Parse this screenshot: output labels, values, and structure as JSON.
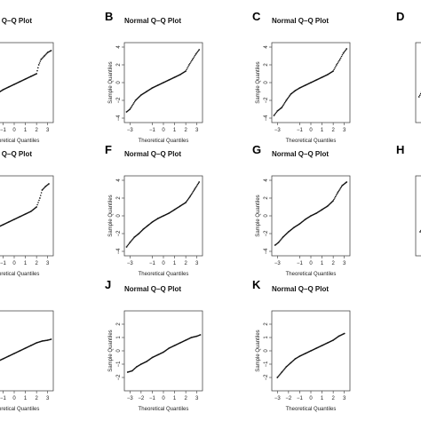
{
  "figure": {
    "panels": [
      {
        "letter": "",
        "title": "Normal Q–Q Plot",
        "xlabel": "Theoretical Quantiles",
        "ylabel": "Sample Quantiles",
        "shape": "A"
      },
      {
        "letter": "B",
        "title": "Normal Q–Q Plot",
        "xlabel": "Theoretical Quantiles",
        "ylabel": "Sample Quantiles",
        "shape": "B"
      },
      {
        "letter": "C",
        "title": "Normal Q–Q Plot",
        "xlabel": "Theoretical Quantiles",
        "ylabel": "Sample Quantiles",
        "shape": "C"
      },
      {
        "letter": "D",
        "title": "N",
        "xlabel": "",
        "ylabel": "",
        "shape": "D"
      },
      {
        "letter": "",
        "title": "Normal Q–Q Plot",
        "xlabel": "Theoretical Quantiles",
        "ylabel": "Sample Quantiles",
        "shape": "E"
      },
      {
        "letter": "F",
        "title": "Normal Q–Q Plot",
        "xlabel": "Theoretical Quantiles",
        "ylabel": "Sample Quantiles",
        "shape": "F"
      },
      {
        "letter": "G",
        "title": "Normal Q–Q Plot",
        "xlabel": "Theoretical Quantiles",
        "ylabel": "Sample Quantiles",
        "shape": "G"
      },
      {
        "letter": "H",
        "title": "N",
        "xlabel": "",
        "ylabel": "",
        "shape": "H"
      },
      {
        "letter": "",
        "title": "",
        "xlabel": "Theoretical Quantiles",
        "ylabel": "",
        "shape": "I"
      },
      {
        "letter": "J",
        "title": "Normal Q–Q Plot",
        "xlabel": "Theoretical Quantiles",
        "ylabel": "Sample Quantiles",
        "shape": "J"
      },
      {
        "letter": "K",
        "title": "Normal Q–Q Plot",
        "xlabel": "Theoretical Quantiles",
        "ylabel": "Sample Quantiles",
        "shape": "K"
      }
    ]
  },
  "chart_data": [
    {
      "panel": "A",
      "type": "scatter",
      "title": "Normal Q–Q Plot",
      "xlabel": "Theoretical Quantiles",
      "ylabel": "Sample Quantiles",
      "xlim": [
        -3.5,
        3.5
      ],
      "ylim": [
        -4.5,
        4.5
      ],
      "x_ticks": [
        -1,
        0,
        1,
        2,
        3
      ],
      "y_ticks": [],
      "x": [
        -3.4,
        -3.0,
        -2.5,
        -2.0,
        -1.5,
        -1.0,
        -0.5,
        0.0,
        0.5,
        1.0,
        1.5,
        2.0,
        2.2,
        2.4,
        2.7,
        3.0,
        3.3
      ],
      "y": [
        -2.8,
        -2.4,
        -2.0,
        -1.6,
        -1.2,
        -0.8,
        -0.5,
        -0.2,
        0.1,
        0.4,
        0.7,
        1.0,
        2.0,
        2.6,
        3.0,
        3.4,
        3.6
      ]
    },
    {
      "panel": "B",
      "type": "scatter",
      "title": "Normal Q–Q Plot",
      "xlabel": "Theoretical Quantiles",
      "ylabel": "Sample Quantiles",
      "xlim": [
        -3.5,
        3.5
      ],
      "ylim": [
        -4.5,
        4.5
      ],
      "x_ticks": [
        -3,
        -1,
        0,
        1,
        2,
        3
      ],
      "y_ticks": [
        -4,
        -2,
        0,
        2,
        4
      ],
      "x": [
        -3.3,
        -3.0,
        -2.5,
        -2.0,
        -1.5,
        -1.0,
        -0.5,
        0.0,
        0.5,
        1.0,
        1.5,
        2.0,
        2.3,
        2.6,
        2.9,
        3.2
      ],
      "y": [
        -3.3,
        -3.0,
        -2.0,
        -1.4,
        -1.0,
        -0.6,
        -0.3,
        0.0,
        0.3,
        0.6,
        0.9,
        1.3,
        2.0,
        2.6,
        3.2,
        3.7
      ]
    },
    {
      "panel": "C",
      "type": "scatter",
      "title": "Normal Q–Q Plot",
      "xlabel": "Theoretical Quantiles",
      "ylabel": "Sample Quantiles",
      "xlim": [
        -3.5,
        3.5
      ],
      "ylim": [
        -4.5,
        4.5
      ],
      "x_ticks": [
        -3,
        -1,
        0,
        1,
        2,
        3
      ],
      "y_ticks": [
        -4,
        -2,
        0,
        2,
        4
      ],
      "x": [
        -3.3,
        -3.0,
        -2.6,
        -2.2,
        -1.8,
        -1.4,
        -1.0,
        -0.5,
        0.0,
        0.5,
        1.0,
        1.5,
        2.0,
        2.3,
        2.6,
        2.9,
        3.2
      ],
      "y": [
        -3.7,
        -3.2,
        -2.8,
        -2.0,
        -1.3,
        -0.9,
        -0.6,
        -0.3,
        0.0,
        0.3,
        0.6,
        0.9,
        1.3,
        2.0,
        2.6,
        3.3,
        3.8
      ]
    },
    {
      "panel": "D",
      "type": "scatter",
      "title": "N",
      "xlim": [
        -3.5,
        3.5
      ],
      "ylim": [
        -4.5,
        4.5
      ],
      "x_ticks": [],
      "y_ticks": [],
      "x": [
        -3.2,
        -2.9,
        -2.6
      ],
      "y": [
        -1.6,
        -0.9,
        -0.3
      ]
    },
    {
      "panel": "E",
      "type": "scatter",
      "title": "Normal Q–Q Plot",
      "xlabel": "Theoretical Quantiles",
      "ylabel": "Sample Quantiles",
      "xlim": [
        -3.5,
        3.5
      ],
      "ylim": [
        -4.5,
        4.5
      ],
      "x_ticks": [
        -1,
        0,
        1,
        2,
        3
      ],
      "y_ticks": [],
      "x": [
        -3.4,
        -3.0,
        -2.5,
        -2.0,
        -1.5,
        -1.0,
        -0.5,
        0.0,
        0.5,
        1.0,
        1.5,
        2.0,
        2.3,
        2.5,
        2.8,
        3.1
      ],
      "y": [
        -2.6,
        -2.3,
        -2.0,
        -1.6,
        -1.3,
        -1.0,
        -0.7,
        -0.4,
        -0.1,
        0.2,
        0.5,
        1.0,
        2.0,
        2.9,
        3.3,
        3.6
      ]
    },
    {
      "panel": "F",
      "type": "scatter",
      "title": "Normal Q–Q Plot",
      "xlabel": "Theoretical Quantiles",
      "ylabel": "Sample Quantiles",
      "xlim": [
        -3.5,
        3.5
      ],
      "ylim": [
        -4.5,
        4.5
      ],
      "x_ticks": [
        -3,
        -1,
        0,
        1,
        2,
        3
      ],
      "y_ticks": [
        -4,
        -2,
        0,
        2,
        4
      ],
      "x": [
        -3.3,
        -3.0,
        -2.6,
        -2.2,
        -1.8,
        -1.4,
        -1.0,
        -0.5,
        0.0,
        0.5,
        1.0,
        1.5,
        2.0,
        2.4,
        2.8,
        3.2
      ],
      "y": [
        -3.5,
        -3.0,
        -2.4,
        -2.0,
        -1.5,
        -1.1,
        -0.7,
        -0.3,
        0.0,
        0.3,
        0.7,
        1.1,
        1.5,
        2.2,
        3.0,
        3.8
      ]
    },
    {
      "panel": "G",
      "type": "scatter",
      "title": "Normal Q–Q Plot",
      "xlabel": "Theoretical Quantiles",
      "ylabel": "Sample Quantiles",
      "xlim": [
        -3.5,
        3.5
      ],
      "ylim": [
        -4.5,
        4.5
      ],
      "x_ticks": [
        -3,
        -1,
        0,
        1,
        2,
        3
      ],
      "y_ticks": [
        -4,
        -2,
        0,
        2,
        4
      ],
      "x": [
        -3.2,
        -2.9,
        -2.5,
        -2.0,
        -1.5,
        -1.0,
        -0.5,
        0.0,
        0.5,
        1.0,
        1.5,
        2.0,
        2.4,
        2.8,
        3.2
      ],
      "y": [
        -3.3,
        -3.0,
        -2.4,
        -1.8,
        -1.3,
        -0.9,
        -0.4,
        0.0,
        0.3,
        0.7,
        1.1,
        1.7,
        2.6,
        3.4,
        3.8
      ]
    },
    {
      "panel": "H",
      "type": "scatter",
      "title": "N",
      "xlim": [
        -3.5,
        3.5
      ],
      "ylim": [
        -4.5,
        4.5
      ],
      "x_ticks": [],
      "y_ticks": [],
      "x": [
        -3.1,
        -2.8
      ],
      "y": [
        -1.8,
        -1.2
      ]
    },
    {
      "panel": "I",
      "type": "scatter",
      "xlabel": "Theoretical Quantiles",
      "xlim": [
        -3.5,
        3.5
      ],
      "ylim": [
        -4.5,
        4.5
      ],
      "x_ticks": [
        -1,
        0,
        1,
        2,
        3
      ],
      "y_ticks": [],
      "x": [
        -3.4,
        -3.0,
        -2.5,
        -2.0,
        -1.5,
        -1.0,
        -0.5,
        0.0,
        0.5,
        1.0,
        1.5,
        2.0,
        2.5,
        3.0,
        3.3
      ],
      "y": [
        -2.4,
        -2.1,
        -1.8,
        -1.5,
        -1.2,
        -0.9,
        -0.6,
        -0.3,
        0.0,
        0.3,
        0.6,
        0.9,
        1.1,
        1.2,
        1.3
      ]
    },
    {
      "panel": "J",
      "type": "scatter",
      "title": "Normal Q–Q Plot",
      "xlabel": "Theoretical Quantiles",
      "ylabel": "Sample Quantiles",
      "xlim": [
        -3.5,
        3.5
      ],
      "ylim": [
        -3.0,
        3.0
      ],
      "x_ticks": [
        -3,
        -2,
        -1,
        0,
        1,
        2,
        3
      ],
      "y_ticks": [
        -2,
        -1,
        0,
        1,
        2
      ],
      "x": [
        -3.2,
        -2.8,
        -2.4,
        -2.0,
        -1.5,
        -1.0,
        -0.5,
        0.0,
        0.5,
        1.0,
        1.5,
        2.0,
        2.5,
        3.0,
        3.3
      ],
      "y": [
        -1.6,
        -1.5,
        -1.2,
        -1.0,
        -0.8,
        -0.5,
        -0.3,
        -0.1,
        0.2,
        0.4,
        0.6,
        0.8,
        1.0,
        1.1,
        1.2
      ]
    },
    {
      "panel": "K",
      "type": "scatter",
      "title": "Normal Q–Q Plot",
      "xlabel": "Theoretical Quantiles",
      "ylabel": "Sample Quantiles",
      "xlim": [
        -3.5,
        3.5
      ],
      "ylim": [
        -3.0,
        3.0
      ],
      "x_ticks": [
        -3,
        -2,
        -1,
        0,
        1,
        2,
        3
      ],
      "y_ticks": [
        -2,
        -1,
        0,
        1,
        2
      ],
      "x": [
        -3.0,
        -2.6,
        -2.2,
        -1.8,
        -1.4,
        -1.0,
        -0.5,
        0.0,
        0.5,
        1.0,
        1.5,
        2.0,
        2.5,
        3.0
      ],
      "y": [
        -2.0,
        -1.6,
        -1.2,
        -0.9,
        -0.6,
        -0.4,
        -0.2,
        0.0,
        0.2,
        0.4,
        0.6,
        0.8,
        1.1,
        1.3
      ]
    }
  ]
}
